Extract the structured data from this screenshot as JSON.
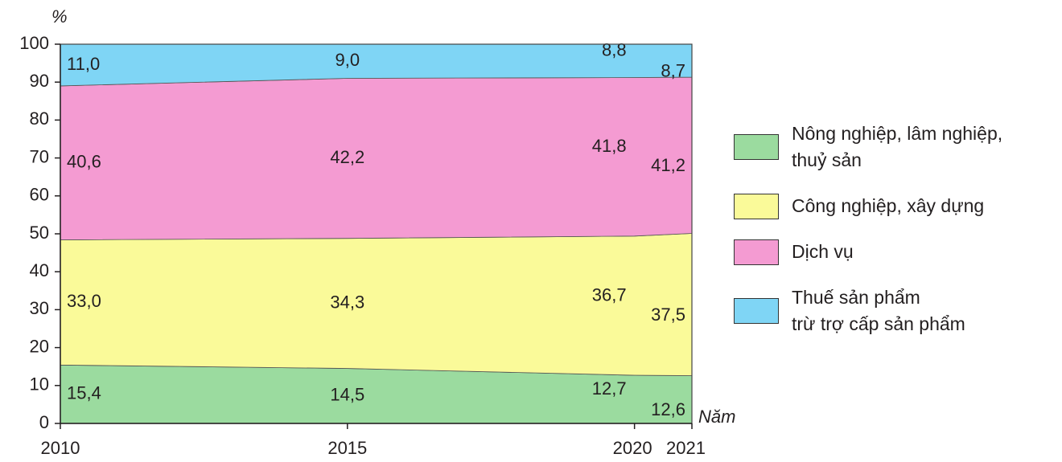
{
  "chart_data": {
    "type": "stacked_area",
    "y_label": "%",
    "x_label": "Năm",
    "x": [
      2010,
      2015,
      2020,
      2021
    ],
    "xlim": [
      2010,
      2021
    ],
    "xticks": [
      2010,
      2015,
      2020,
      2021
    ],
    "ylim": [
      0,
      100
    ],
    "yticks": [
      0,
      10,
      20,
      30,
      40,
      50,
      60,
      70,
      80,
      90,
      100
    ],
    "series": [
      {
        "name": "Nông nghiệp, lâm nghiệp,\nthuỷ sản",
        "color": "#9bdb9f",
        "values": [
          15.4,
          14.5,
          12.7,
          12.6
        ],
        "value_labels": [
          "15,4",
          "14,5",
          "12,7",
          "12,6"
        ]
      },
      {
        "name": "Công nghiệp, xây dựng",
        "color": "#fafa99",
        "values": [
          33.0,
          34.3,
          36.7,
          37.5
        ],
        "value_labels": [
          "33,0",
          "34,3",
          "36,7",
          "37,5"
        ]
      },
      {
        "name": "Dịch vụ",
        "color": "#f49bd2",
        "values": [
          40.6,
          42.2,
          41.8,
          41.2
        ],
        "value_labels": [
          "40,6",
          "42,2",
          "41,8",
          "41,2"
        ]
      },
      {
        "name": "Thuế sản phẩm\ntrừ trợ cấp sản phẩm",
        "color": "#7fd5f5",
        "values": [
          11.0,
          9.0,
          8.8,
          8.7
        ],
        "value_labels": [
          "11,0",
          "9,0",
          "8,8",
          "8,7"
        ]
      }
    ]
  }
}
